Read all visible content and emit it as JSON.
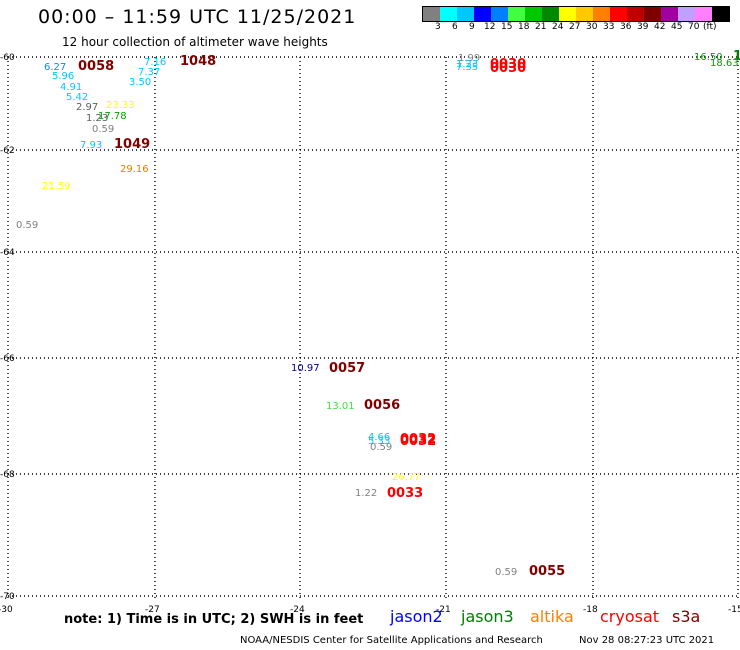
{
  "header": {
    "title": "00:00 – 11:59 UTC 11/25/2021",
    "subtitle": "12 hour collection of altimeter wave heights"
  },
  "colorbar": {
    "colors": [
      "#808080",
      "#00ffff",
      "#00c8ff",
      "#0000ff",
      "#0080ff",
      "#40ff40",
      "#00c800",
      "#008800",
      "#ffff00",
      "#ffc800",
      "#ff8000",
      "#ff0000",
      "#c00000",
      "#800000",
      "#a000a0",
      "#c0a0ff",
      "#ff80ff",
      "#000000"
    ],
    "labels": [
      "3",
      "6",
      "9",
      "12",
      "15",
      "18",
      "21",
      "24",
      "27",
      "30",
      "33",
      "36",
      "39",
      "42",
      "45",
      "70",
      "(ft)"
    ]
  },
  "map": {
    "lat_ticks": [
      "-60",
      "-62",
      "-64",
      "-66",
      "-68",
      "-70"
    ],
    "lon_ticks": [
      "-30",
      "-27",
      "-24",
      "-21",
      "-18",
      "-15"
    ],
    "lat_range": [
      -70,
      -60
    ],
    "lon_range": [
      -30,
      -15
    ],
    "graticule": "dotted",
    "wave_labels": [
      {
        "text": "6.27",
        "color": "#0096c8"
      },
      {
        "text": "0058",
        "color": "#800000"
      },
      {
        "text": "7.16",
        "color": "#00c8ff"
      },
      {
        "text": "1048",
        "color": "#800000"
      },
      {
        "text": "5.96",
        "color": "#00c8ff"
      },
      {
        "text": "7.37",
        "color": "#00c8ff"
      },
      {
        "text": "3.50",
        "color": "#00c8ff"
      },
      {
        "text": "4.91",
        "color": "#00c8ff"
      },
      {
        "text": "5.42",
        "color": "#00c8ff"
      },
      {
        "text": "2.97",
        "color": "#606060"
      },
      {
        "text": "23.33",
        "color": "#ffff00"
      },
      {
        "text": "1.23",
        "color": "#606060"
      },
      {
        "text": "17.78",
        "color": "#00a000"
      },
      {
        "text": "0.59",
        "color": "#808080"
      },
      {
        "text": "7.93",
        "color": "#00c8ff"
      },
      {
        "text": "1049",
        "color": "#800000"
      },
      {
        "text": "29.16",
        "color": "#e08000"
      },
      {
        "text": "21.59",
        "color": "#ffff00"
      },
      {
        "text": "0.59",
        "color": "#808080"
      },
      {
        "text": "1.99",
        "color": "#808080"
      },
      {
        "text": "1.23",
        "color": "#00c8ff"
      },
      {
        "text": "7.35",
        "color": "#00c8ff"
      },
      {
        "text": "0030",
        "color": "#ff0000"
      },
      {
        "text": "0030",
        "color": "#ff0000"
      },
      {
        "text": "16.50",
        "color": "#00a000"
      },
      {
        "text": "1",
        "color": "#008000"
      },
      {
        "text": "18.63",
        "color": "#00a000"
      },
      {
        "text": "10.97",
        "color": "#00008b"
      },
      {
        "text": "0057",
        "color": "#800000"
      },
      {
        "text": "13.01",
        "color": "#40e040"
      },
      {
        "text": "0056",
        "color": "#800000"
      },
      {
        "text": "4.66",
        "color": "#00c8ff"
      },
      {
        "text": "5.33",
        "color": "#00c8ff"
      },
      {
        "text": "0.59",
        "color": "#808080"
      },
      {
        "text": "0032",
        "color": "#ff0000"
      },
      {
        "text": "0032",
        "color": "#ff0000"
      },
      {
        "text": "26.77",
        "color": "#ffff00"
      },
      {
        "text": "1.22",
        "color": "#808080"
      },
      {
        "text": "0033",
        "color": "#ff0000"
      },
      {
        "text": "0.59",
        "color": "#808080"
      },
      {
        "text": "0055",
        "color": "#800000"
      }
    ]
  },
  "footer": {
    "note": "note: 1) Time is in UTC; 2) SWH is in feet",
    "satellites": [
      {
        "name": "jason2",
        "color": "#0000ff"
      },
      {
        "name": "jason3",
        "color": "#008000"
      },
      {
        "name": "altika",
        "color": "#ff8000"
      },
      {
        "name": "cryosat",
        "color": "#ff0000"
      },
      {
        "name": "s3a",
        "color": "#800000"
      }
    ],
    "credit": "NOAA/NESDIS Center for Satellite Applications and Research",
    "timestamp": "Nov 28 08:27:23 UTC 2021"
  }
}
